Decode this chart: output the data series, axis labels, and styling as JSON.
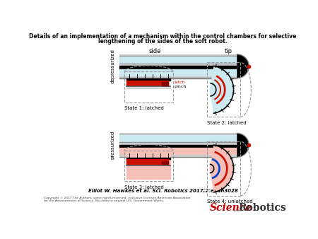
{
  "title_line1": "Details of an implementation of a mechanism within the control chambers for selective",
  "title_line2": "lengthening of the sides of the soft robot.",
  "label_side": "side",
  "label_tip": "tip",
  "label_depressurized": "depressurized",
  "label_pressurized": "pressurized",
  "label_state1": "State 1: latched",
  "label_state2": "State 2: latched",
  "label_state3": "State 3: latched",
  "label_state4": "State 4: unlatched",
  "label_latch": "latch",
  "label_pinch": "pinch",
  "citation": "Elliot W. Hawkes et al. Sci. Robotics 2017;2:eaan3028",
  "copyright": "Copyright © 2017 The Authors, some rights reserved; exclusive licensee American Association\nfor the Advancement of Science. No claim to original U.S. Government Works.",
  "science_color": "#cc0000",
  "robotics_color": "#333333",
  "bg_color": "#ffffff",
  "light_blue": "#cce8f0",
  "gray_dark": "#555555",
  "black": "#000000",
  "red": "#cc1100",
  "pink": "#f5c0b8",
  "dashed_color": "#999999",
  "gray_border": "#aaaaaa",
  "gray_fill": "#888888"
}
